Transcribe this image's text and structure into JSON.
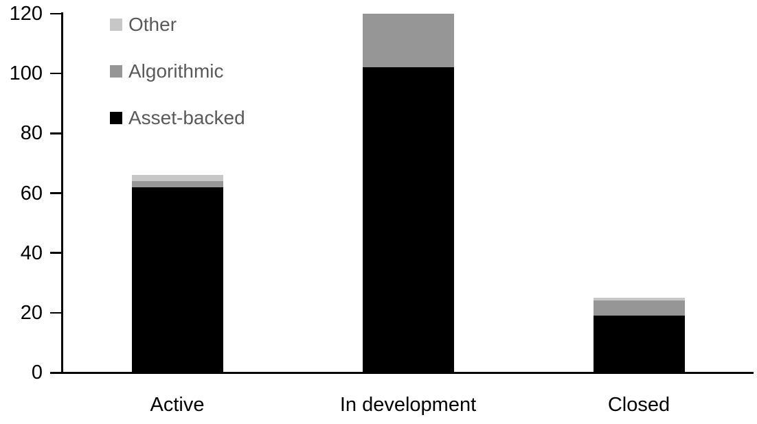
{
  "chart_data": {
    "type": "bar",
    "stacked": true,
    "title": "",
    "xlabel": "",
    "ylabel": "",
    "categories": [
      "Active",
      "In development",
      "Closed"
    ],
    "series": [
      {
        "name": "Asset-backed",
        "color": "#000000",
        "values": [
          62,
          102,
          19
        ]
      },
      {
        "name": "Algorithmic",
        "color": "#969696",
        "values": [
          2,
          18,
          5
        ]
      },
      {
        "name": "Other",
        "color": "#c7c7c7",
        "values": [
          2,
          0,
          1
        ]
      }
    ],
    "totals": [
      66,
      120,
      25
    ],
    "yticks": [
      0,
      20,
      40,
      60,
      80,
      100,
      120
    ],
    "ylim": [
      0,
      120
    ],
    "grid": false,
    "legend_position": "top-left",
    "legend_order": [
      "Other",
      "Algorithmic",
      "Asset-backed"
    ],
    "legend_text_color": "#595959",
    "axis_color": "#000000"
  }
}
